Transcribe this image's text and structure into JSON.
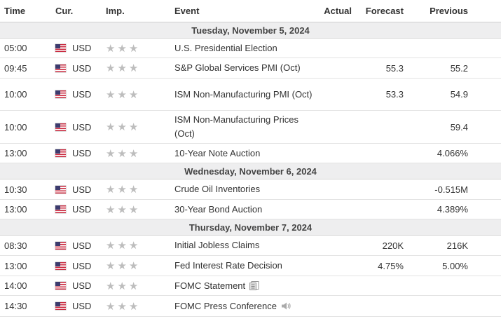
{
  "headers": {
    "time": "Time",
    "currency": "Cur.",
    "importance": "Imp.",
    "event": "Event",
    "actual": "Actual",
    "forecast": "Forecast",
    "previous": "Previous"
  },
  "importance_symbol": "★",
  "flag_icon": "us-flag-icon",
  "days": [
    {
      "date": "Tuesday, November 5, 2024",
      "events": [
        {
          "time": "05:00",
          "currency": "USD",
          "event": "U.S. Presidential Election",
          "actual": "",
          "forecast": "",
          "previous": ""
        },
        {
          "time": "09:45",
          "currency": "USD",
          "event": "S&P Global Services PMI (Oct)",
          "actual": "",
          "forecast": "55.3",
          "previous": "55.2"
        },
        {
          "time": "10:00",
          "currency": "USD",
          "event": "ISM Non-Manufacturing PMI (Oct)",
          "actual": "",
          "forecast": "53.3",
          "previous": "54.9"
        },
        {
          "time": "10:00",
          "currency": "USD",
          "event": "ISM Non-Manufacturing Prices (Oct)",
          "actual": "",
          "forecast": "",
          "previous": "59.4"
        },
        {
          "time": "13:00",
          "currency": "USD",
          "event": "10-Year Note Auction",
          "actual": "",
          "forecast": "",
          "previous": "4.066%"
        }
      ]
    },
    {
      "date": "Wednesday, November 6, 2024",
      "events": [
        {
          "time": "10:30",
          "currency": "USD",
          "event": "Crude Oil Inventories",
          "actual": "",
          "forecast": "",
          "previous": "-0.515M"
        },
        {
          "time": "13:00",
          "currency": "USD",
          "event": "30-Year Bond Auction",
          "actual": "",
          "forecast": "",
          "previous": "4.389%"
        }
      ]
    },
    {
      "date": "Thursday, November 7, 2024",
      "events": [
        {
          "time": "08:30",
          "currency": "USD",
          "event": "Initial Jobless Claims",
          "actual": "",
          "forecast": "220K",
          "previous": "216K"
        },
        {
          "time": "13:00",
          "currency": "USD",
          "event": "Fed Interest Rate Decision",
          "actual": "",
          "forecast": "4.75%",
          "previous": "5.00%"
        },
        {
          "time": "14:00",
          "currency": "USD",
          "event": "FOMC Statement",
          "actual": "",
          "forecast": "",
          "previous": "",
          "icon": "document-icon"
        },
        {
          "time": "14:30",
          "currency": "USD",
          "event": "FOMC Press Conference",
          "actual": "",
          "forecast": "",
          "previous": "",
          "icon": "speaker-icon"
        }
      ]
    }
  ]
}
